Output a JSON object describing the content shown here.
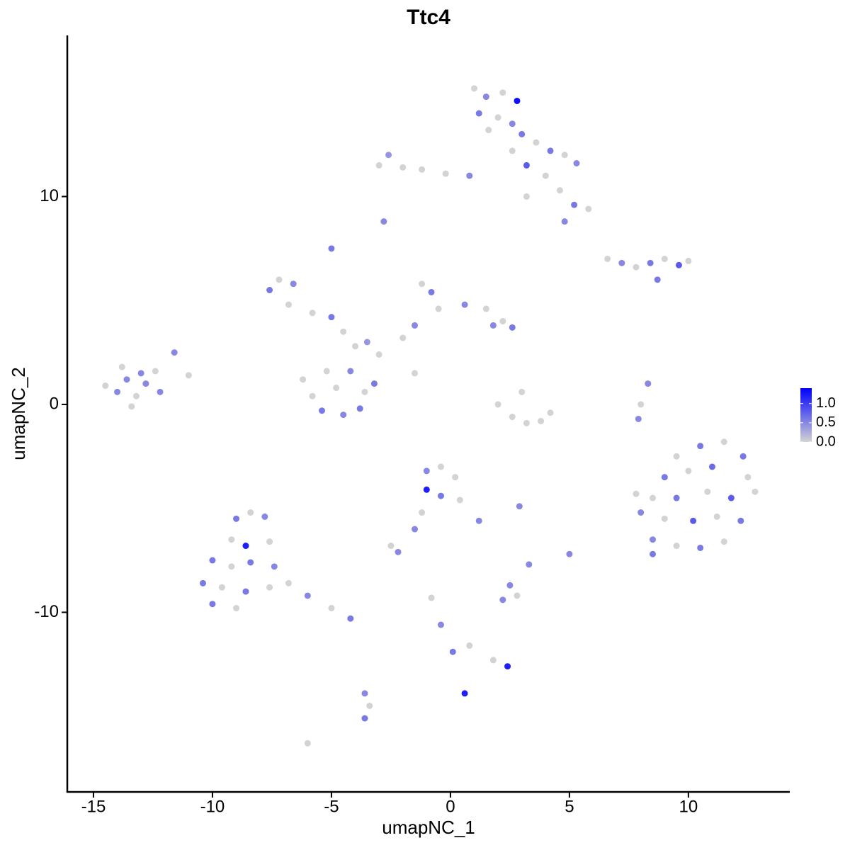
{
  "chart_data": {
    "type": "scatter",
    "title": "Ttc4",
    "xlabel": "umapNC_1",
    "ylabel": "umapNC_2",
    "x": [
      1.0,
      1.5,
      2.2,
      2.8,
      1.2,
      2.0,
      2.6,
      1.6,
      3.0,
      3.6,
      4.2,
      4.8,
      5.3,
      3.2,
      4.0,
      4.6,
      5.2,
      5.8,
      4.8,
      2.6,
      -3.0,
      -2.6,
      -2.0,
      -1.2,
      -0.2,
      0.8,
      3.2,
      -2.8,
      -7.6,
      -7.2,
      -6.6,
      -6.8,
      -5.8,
      -5.0,
      -4.5,
      -4.0,
      -3.5,
      -3.0,
      -2.0,
      -1.5,
      -1.2,
      -0.8,
      -0.5,
      0.6,
      1.5,
      2.2,
      2.6,
      1.8,
      -5.0,
      -1.5,
      -6.2,
      -5.8,
      -5.4,
      -4.8,
      -4.5,
      -4.2,
      -3.6,
      -3.8,
      -3.2,
      -5.2,
      2.0,
      2.6,
      3.2,
      3.8,
      4.2,
      3.0,
      -14.5,
      -14.0,
      -13.6,
      -13.2,
      -12.8,
      -12.4,
      -13.8,
      -13.0,
      -12.2,
      -11.6,
      -11.0,
      -13.4,
      6.6,
      7.2,
      7.8,
      8.4,
      9.0,
      9.6,
      10.0,
      8.7,
      8.3,
      8.0,
      7.9,
      9.5,
      10.5,
      11.5,
      12.3,
      9,
      10,
      11,
      12.5,
      8.5,
      9.5,
      10.8,
      11.8,
      12.8,
      8.0,
      9.0,
      10.2,
      11.2,
      12.2,
      8.5,
      9.5,
      10.5,
      11.5,
      7.8,
      8.5,
      -9.0,
      -8.4,
      -7.8,
      -9.2,
      -8.6,
      -7.6,
      -10.0,
      -9.2,
      -8.4,
      -7.4,
      -10.4,
      -9.6,
      -8.6,
      -7.6,
      -6.8,
      -10.0,
      -9.0,
      -6.0,
      -5.0,
      -4.2,
      -1.0,
      -0.4,
      0.2,
      -1.0,
      -0.4,
      0.4,
      -1.2,
      1.2,
      -2.5,
      -2.2,
      -1.5,
      2.9,
      5.0,
      3.3,
      2.2,
      2.8,
      2.5,
      -0.8,
      -0.4,
      0.1,
      0.8,
      1.8,
      2.4,
      0.6,
      -3.6,
      -3.4,
      -3.6,
      -6.0
    ],
    "y": [
      15.2,
      14.8,
      15.0,
      14.6,
      14.0,
      13.8,
      13.5,
      13.2,
      13.0,
      12.6,
      12.2,
      12.0,
      11.6,
      11.5,
      11.0,
      10.3,
      9.6,
      9.4,
      8.8,
      12.2,
      11.5,
      12.0,
      11.4,
      11.3,
      11.1,
      11.0,
      10.0,
      8.8,
      5.5,
      6.0,
      5.8,
      4.8,
      4.4,
      4.2,
      3.5,
      2.8,
      3.0,
      2.4,
      3.2,
      3.8,
      5.8,
      5.4,
      4.6,
      4.8,
      4.6,
      4.0,
      3.7,
      3.8,
      7.5,
      1.5,
      1.2,
      0.4,
      -0.3,
      0.8,
      -0.5,
      1.6,
      0.6,
      -0.2,
      1.0,
      1.6,
      0,
      -0.6,
      -0.9,
      -0.8,
      -0.4,
      0.6,
      0.9,
      0.6,
      1.2,
      0.4,
      1.0,
      1.6,
      1.8,
      1.5,
      0.6,
      2.5,
      1.4,
      -0.1,
      7.0,
      6.8,
      6.6,
      6.8,
      7.0,
      6.7,
      6.9,
      6.0,
      1.0,
      0,
      -0.7,
      -2.5,
      -2,
      -1.8,
      -2.5,
      -3.5,
      -3.2,
      -3.0,
      -3.5,
      -4.5,
      -4.5,
      -4.2,
      -4.5,
      -4.2,
      -5.2,
      -5.5,
      -5.6,
      -5.4,
      -5.6,
      -6.5,
      -6.8,
      -6.9,
      -6.6,
      -4.3,
      -7.2,
      -5.5,
      -5.2,
      -5.4,
      -6.5,
      -6.8,
      -6.6,
      -7.5,
      -7.8,
      -7.6,
      -7.8,
      -8.6,
      -8.8,
      -9.0,
      -8.8,
      -8.6,
      -9.6,
      -9.8,
      -9.2,
      -9.8,
      -10.3,
      -3.2,
      -3.0,
      -3.5,
      -4.1,
      -4.4,
      -4.6,
      -5.2,
      -5.6,
      -6.8,
      -7.1,
      -6.0,
      -4.9,
      -7.2,
      -7.7,
      -9.4,
      -9.2,
      -8.7,
      -9.3,
      -10.6,
      -11.9,
      -11.6,
      -12.3,
      -12.6,
      -13.9,
      -13.9,
      -14.5,
      -15.1,
      -16.3
    ],
    "values": [
      0,
      0.5,
      0,
      1.3,
      0.6,
      0,
      0.5,
      0,
      0.6,
      0,
      0.6,
      0,
      0.5,
      0.8,
      0,
      0,
      0.6,
      0,
      0.5,
      0,
      0,
      0.4,
      0,
      0,
      0,
      0.5,
      0,
      0.5,
      0.6,
      0,
      0.5,
      0,
      0,
      0.6,
      0,
      0,
      0.4,
      0,
      0,
      0.5,
      0,
      0.6,
      0,
      0.5,
      0,
      0,
      0.6,
      0.5,
      0.6,
      0,
      0,
      0,
      0.6,
      0,
      0.5,
      0.5,
      0,
      0.6,
      0.6,
      0,
      0,
      0,
      0,
      0,
      0,
      0,
      0,
      0.5,
      0.5,
      0,
      0.5,
      0,
      0,
      0.5,
      0.5,
      0.5,
      0,
      0,
      0,
      0.5,
      0,
      0.6,
      0,
      0.8,
      0,
      0.6,
      0.5,
      0,
      0.5,
      0,
      0.6,
      0,
      0.6,
      0.6,
      0,
      0.7,
      0,
      0,
      0.6,
      0,
      0.8,
      0,
      0.5,
      0,
      0.8,
      0,
      0.6,
      0.5,
      0,
      0.6,
      0,
      0,
      0.6,
      0.6,
      0,
      0.5,
      0,
      1.2,
      0,
      0.6,
      0,
      0.6,
      0.5,
      0.6,
      0,
      0.6,
      0,
      0,
      0.6,
      0,
      0.5,
      0,
      0.6,
      0.5,
      0,
      0,
      1.2,
      0.6,
      0,
      0,
      0.5,
      0,
      0.5,
      0.5,
      0.5,
      0.5,
      0.5,
      0.5,
      0,
      0.5,
      0,
      0.5,
      0.6,
      0,
      0,
      1.2,
      1.2,
      0.5,
      0,
      0.6,
      0
    ],
    "xlim": [
      -16.1,
      14.26
    ],
    "ylim": [
      -18.64,
      17.75
    ],
    "xticks": [
      -15,
      -10,
      -5,
      0,
      5,
      10
    ],
    "yticks": [
      -10,
      0,
      10
    ],
    "color_low": "#d3d3d3",
    "color_high": "#0000ff",
    "colorbar_lim": [
      0,
      1.4
    ],
    "colorbar_ticks": [
      {
        "value": 0,
        "label": "0.0"
      },
      {
        "value": 0.5,
        "label": "0.5"
      },
      {
        "value": 1,
        "label": "1.0"
      }
    ]
  }
}
